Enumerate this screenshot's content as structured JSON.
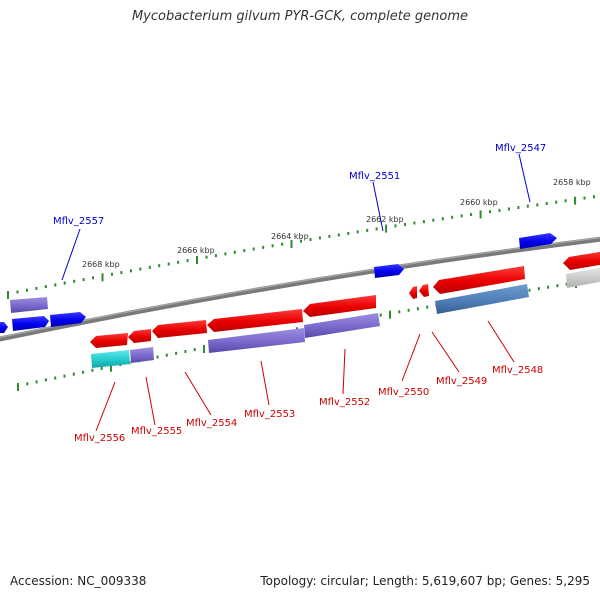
{
  "title": "Mycobacterium gilvum PYR-GCK, complete genome",
  "footer": {
    "accession": "Accession: NC_009338",
    "summary": "Topology: circular; Length: 5,619,607 bp; Genes: 5,295"
  },
  "ruler_labels": [
    "2668 kbp",
    "2666 kbp",
    "2664 kbp",
    "2662 kbp",
    "2660 kbp",
    "2658 kbp"
  ],
  "forward_genes": [
    "Mflv_2557",
    "Mflv_2551",
    "Mflv_2547"
  ],
  "reverse_genes": [
    "Mflv_2556",
    "Mflv_2555",
    "Mflv_2554",
    "Mflv_2553",
    "Mflv_2552",
    "Mflv_2550",
    "Mflv_2549",
    "Mflv_2548"
  ],
  "colors": {
    "forward_cds": "#0000ee",
    "forward_feature": "#7b68cc",
    "reverse_cds": "#ee0000",
    "reverse_feature": "#7b68cc",
    "cyan_feature": "#22cccc",
    "steelblue_feature": "#4f7fb8",
    "backbone": "#7a7a7a",
    "ticks": "#2e8b2e"
  }
}
